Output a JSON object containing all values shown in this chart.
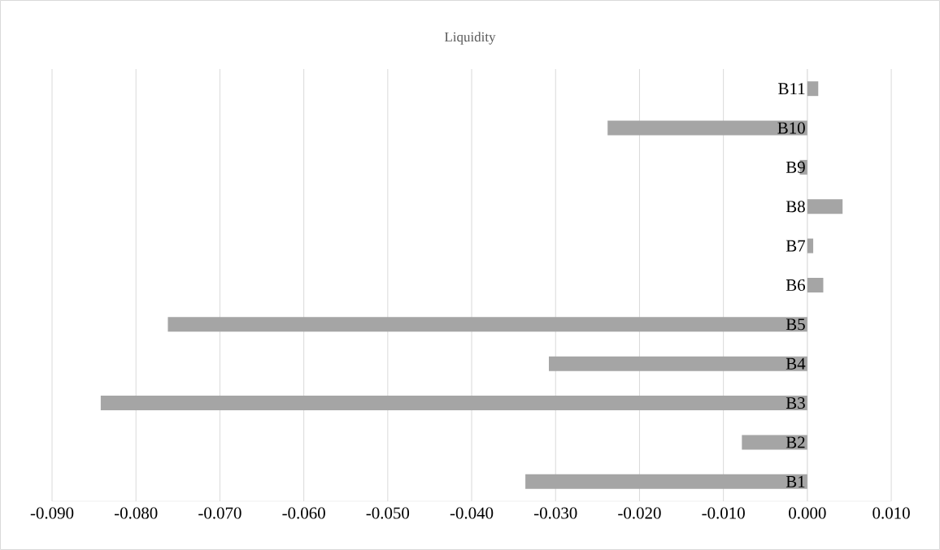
{
  "chart_data": {
    "type": "bar",
    "orientation": "horizontal",
    "title": "Liquidity",
    "categories": [
      "B11",
      "B10",
      "B9",
      "B8",
      "B7",
      "B6",
      "B5",
      "B4",
      "B3",
      "B2",
      "B1"
    ],
    "values": [
      0.0013,
      -0.0238,
      -0.0009,
      0.0042,
      0.0007,
      0.0019,
      -0.0762,
      -0.0308,
      -0.0842,
      -0.0078,
      -0.0336
    ],
    "color": "#a5a5a5",
    "xlim": [
      -0.09,
      0.01
    ],
    "xticks": [
      {
        "value": -0.09,
        "label": "-0.090"
      },
      {
        "value": -0.08,
        "label": "-0.080"
      },
      {
        "value": -0.07,
        "label": "-0.070"
      },
      {
        "value": -0.06,
        "label": "-0.060"
      },
      {
        "value": -0.05,
        "label": "-0.050"
      },
      {
        "value": -0.04,
        "label": "-0.040"
      },
      {
        "value": -0.03,
        "label": "-0.030"
      },
      {
        "value": -0.02,
        "label": "-0.020"
      },
      {
        "value": -0.01,
        "label": "-0.010"
      },
      {
        "value": 0,
        "label": "0.000"
      },
      {
        "value": 0.01,
        "label": "0.010"
      }
    ],
    "grid": "x"
  }
}
